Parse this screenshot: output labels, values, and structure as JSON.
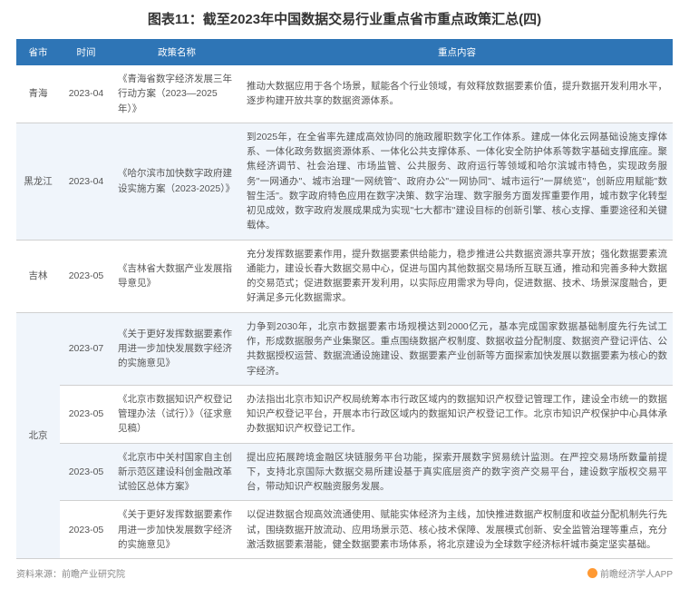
{
  "title": "图表11：截至2023年中国数据交易行业重点省市重点政策汇总(四)",
  "headers": {
    "province": "省市",
    "time": "时间",
    "policy": "政策名称",
    "content": "重点内容"
  },
  "rows": [
    {
      "province": "青海",
      "time": "2023-04",
      "policy": "《青海省数字经济发展三年行动方案（2023—2025年）》",
      "content": "推动大数据应用于各个场景，赋能各个行业领域，有效释放数据要素价值，提升数据开发利用水平，逐步构建开放共享的数据资源体系。",
      "rowspan_province": 1
    },
    {
      "province": "黑龙江",
      "time": "2023-04",
      "policy": "《哈尔滨市加快数字政府建设实施方案（2023-2025）》",
      "content": "到2025年，在全省率先建成高效协同的施政履职数字化工作体系。建成一体化云网基础设施支撑体系、一体化政务数据资源体系、一体化公共支撑体系、一体化安全防护体系等数字基础支撑底座。聚焦经济调节、社会治理、市场监管、公共服务、政府运行等领域和哈尔滨城市特色，实现政务服务\"一网通办\"、城市治理\"一网统管\"、政府办公\"一网协同\"、城市运行\"一屏统览\"，创新应用赋能\"数智生活\"。数字政府特色应用在数字决策、数字治理、数字服务方面发挥重要作用，城市数字化转型初见成效，数字政府发展成果成为实现\"七大都市\"建设目标的创新引擎、核心支撑、重要途径和关键载体。",
      "rowspan_province": 1
    },
    {
      "province": "吉林",
      "time": "2023-05",
      "policy": "《吉林省大数据产业发展指导意见》",
      "content": "充分发挥数据要素作用，提升数据要素供给能力，稳步推进公共数据资源共享开放；强化数据要素流通能力，建设长春大数据交易中心，促进与国内其他数据交易场所互联互通，推动和完善多种大数据的交易范式；促进数据要素开发利用，以实际应用需求为导向，促进数据、技术、场景深度融合，更好满足多元化数据需求。",
      "rowspan_province": 1
    },
    {
      "province": "北京",
      "time": "2023-07",
      "policy": "《关于更好发挥数据要素作用进一步加快发展数字经济的实施意见》",
      "content": "力争到2030年，北京市数据要素市场规模达到2000亿元，基本完成国家数据基础制度先行先试工作，形成数据服务产业集聚区。重点围绕数据产权制度、数据收益分配制度、数据资产登记评估、公共数据授权运营、数据流通设施建设、数据要素产业创新等方面探索加快发展以数据要素为核心的数字经济。",
      "rowspan_province": 4
    },
    {
      "province": "",
      "time": "2023-05",
      "policy": "《北京市数据知识产权登记管理办法（试行）》（征求意见稿）",
      "content": "办法指出北京市知识产权局统筹本市行政区域内的数据知识产权登记管理工作，建设全市统一的数据知识产权登记平台，开展本市行政区域内的数据知识产权登记工作。北京市知识产权保护中心具体承办数据知识产权登记工作。",
      "rowspan_province": 0
    },
    {
      "province": "",
      "time": "2023-05",
      "policy": "《北京市中关村国家自主创新示范区建设科创金融改革试验区总体方案》",
      "content": "提出应拓展跨境金融区块链服务平台功能，探索开展数字贸易统计监测。在严控交易场所数量前提下，支持北京国际大数据交易所建设基于真实底层资产的数字资产交易平台，建设数字版权交易平台，带动知识产权融资服务发展。",
      "rowspan_province": 0
    },
    {
      "province": "",
      "time": "2023-05",
      "policy": "《关于更好发挥数据要素作用进一步加快发展数字经济的实施意见》",
      "content": "以促进数据合规高效流通使用、赋能实体经济为主线，加快推进数据产权制度和收益分配机制先行先试，围绕数据开放流动、应用场景示范、核心技术保障、发展模式创新、安全监管治理等重点，充分激活数据要素潜能，健全数据要素市场体系，将北京建设为全球数字经济标杆城市奠定坚实基础。",
      "rowspan_province": 0
    }
  ],
  "footer": {
    "source": "资料来源：前瞻产业研究院",
    "brand": "前瞻经济学人APP"
  },
  "colors": {
    "header_bg": "#2e75b6",
    "header_text": "#ffffff",
    "row_odd": "#ffffff",
    "row_even": "#f0f5fb",
    "border": "#d0d0d0",
    "text": "#555555",
    "title": "#333333",
    "footer": "#888888",
    "logo": "#ff9933"
  }
}
